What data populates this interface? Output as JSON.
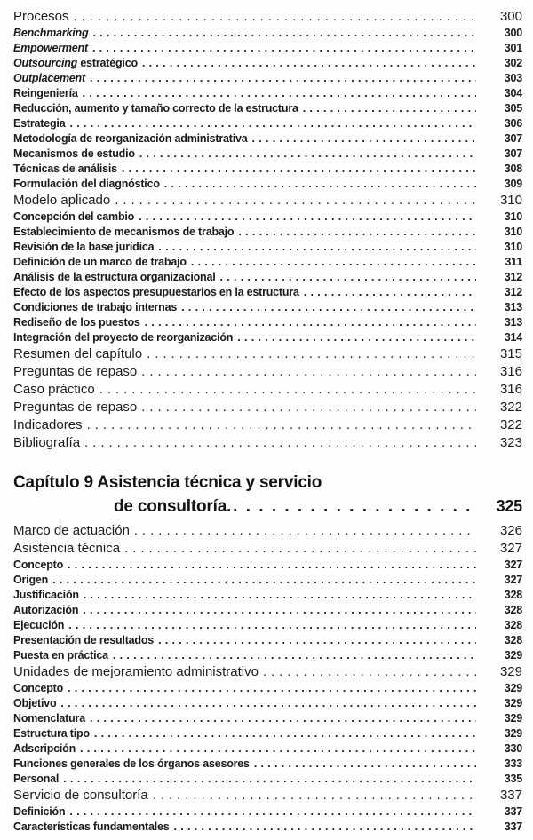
{
  "page": {
    "background": "#fdfdfb",
    "text_color": "#1b1b1b"
  },
  "toc": {
    "blocks": [
      {
        "type": "row",
        "style": "main",
        "segments": [
          {
            "text": "Procesos"
          }
        ],
        "page": "300"
      },
      {
        "type": "row",
        "style": "sub",
        "segments": [
          {
            "text": "Benchmarking",
            "italic": true
          }
        ],
        "page": "300"
      },
      {
        "type": "row",
        "style": "sub",
        "segments": [
          {
            "text": "Empowerment",
            "italic": true
          }
        ],
        "page": "301"
      },
      {
        "type": "row",
        "style": "sub",
        "segments": [
          {
            "text": "Outsourcing",
            "italic": true
          },
          {
            "text": " estratégico"
          }
        ],
        "page": "302"
      },
      {
        "type": "row",
        "style": "sub",
        "segments": [
          {
            "text": "Outplacement",
            "italic": true
          }
        ],
        "page": "303"
      },
      {
        "type": "row",
        "style": "sub",
        "segments": [
          {
            "text": "Reingeniería"
          }
        ],
        "page": "304"
      },
      {
        "type": "row",
        "style": "sub",
        "segments": [
          {
            "text": "Reducción, aumento y tamaño correcto de la estructura"
          }
        ],
        "page": "305"
      },
      {
        "type": "row",
        "style": "sub",
        "segments": [
          {
            "text": "Estrategia"
          }
        ],
        "page": "306"
      },
      {
        "type": "row",
        "style": "sub",
        "segments": [
          {
            "text": "Metodología de reorganización administrativa"
          }
        ],
        "page": "307"
      },
      {
        "type": "row",
        "style": "sub",
        "segments": [
          {
            "text": "Mecanismos de estudio"
          }
        ],
        "page": "307"
      },
      {
        "type": "row",
        "style": "sub",
        "segments": [
          {
            "text": "Técnicas de análisis"
          }
        ],
        "page": "308"
      },
      {
        "type": "row",
        "style": "sub",
        "segments": [
          {
            "text": "Formulación del diagnóstico"
          }
        ],
        "page": "309"
      },
      {
        "type": "row",
        "style": "main",
        "segments": [
          {
            "text": "Modelo aplicado"
          }
        ],
        "page": "310"
      },
      {
        "type": "row",
        "style": "sub",
        "segments": [
          {
            "text": "Concepción del cambio"
          }
        ],
        "page": "310"
      },
      {
        "type": "row",
        "style": "sub",
        "segments": [
          {
            "text": "Establecimiento de mecanismos de trabajo"
          }
        ],
        "page": "310"
      },
      {
        "type": "row",
        "style": "sub",
        "segments": [
          {
            "text": "Revisión de la base jurídica"
          }
        ],
        "page": "310"
      },
      {
        "type": "row",
        "style": "sub",
        "segments": [
          {
            "text": "Definición de un marco de trabajo"
          }
        ],
        "page": "311"
      },
      {
        "type": "row",
        "style": "sub",
        "segments": [
          {
            "text": "Análisis de la estructura organizacional"
          }
        ],
        "page": "312"
      },
      {
        "type": "row",
        "style": "sub",
        "segments": [
          {
            "text": "Efecto de los aspectos presupuestarios en la estructura"
          }
        ],
        "page": "312"
      },
      {
        "type": "row",
        "style": "sub",
        "segments": [
          {
            "text": "Condiciones de trabajo internas"
          }
        ],
        "page": "313"
      },
      {
        "type": "row",
        "style": "sub",
        "segments": [
          {
            "text": "Rediseño de los puestos"
          }
        ],
        "page": "313"
      },
      {
        "type": "row",
        "style": "sub",
        "segments": [
          {
            "text": "Integración del proyecto de reorganización"
          }
        ],
        "page": "314"
      },
      {
        "type": "row",
        "style": "main",
        "segments": [
          {
            "text": "Resumen del capítulo"
          }
        ],
        "page": "315"
      },
      {
        "type": "row",
        "style": "main",
        "segments": [
          {
            "text": "Preguntas de repaso"
          }
        ],
        "page": "316"
      },
      {
        "type": "row",
        "style": "main",
        "segments": [
          {
            "text": "Caso práctico"
          }
        ],
        "page": "316"
      },
      {
        "type": "row",
        "style": "main",
        "segments": [
          {
            "text": "Preguntas de repaso"
          }
        ],
        "page": "322"
      },
      {
        "type": "row",
        "style": "main",
        "segments": [
          {
            "text": "Indicadores"
          }
        ],
        "page": "322"
      },
      {
        "type": "row",
        "style": "main",
        "segments": [
          {
            "text": "Bibliografía"
          }
        ],
        "page": "323"
      },
      {
        "type": "chapter",
        "line1": "Capítulo 9 Asistencia técnica y servicio",
        "line2": "de consultoría.",
        "page": "325"
      },
      {
        "type": "row",
        "style": "main",
        "segments": [
          {
            "text": "Marco de actuación"
          }
        ],
        "page": "326"
      },
      {
        "type": "row",
        "style": "main",
        "segments": [
          {
            "text": "Asistencia técnica"
          }
        ],
        "page": "327"
      },
      {
        "type": "row",
        "style": "sub",
        "segments": [
          {
            "text": "Concepto"
          }
        ],
        "page": "327"
      },
      {
        "type": "row",
        "style": "sub",
        "segments": [
          {
            "text": "Origen"
          }
        ],
        "page": "327"
      },
      {
        "type": "row",
        "style": "sub",
        "segments": [
          {
            "text": "Justificación"
          }
        ],
        "page": "328"
      },
      {
        "type": "row",
        "style": "sub",
        "segments": [
          {
            "text": "Autorización"
          }
        ],
        "page": "328"
      },
      {
        "type": "row",
        "style": "sub",
        "segments": [
          {
            "text": "Ejecución"
          }
        ],
        "page": "328"
      },
      {
        "type": "row",
        "style": "sub",
        "segments": [
          {
            "text": "Presentación de resultados"
          }
        ],
        "page": "328"
      },
      {
        "type": "row",
        "style": "sub",
        "segments": [
          {
            "text": "Puesta en práctica"
          }
        ],
        "page": "329"
      },
      {
        "type": "row",
        "style": "main",
        "segments": [
          {
            "text": "Unidades de mejoramiento administrativo"
          }
        ],
        "page": "329"
      },
      {
        "type": "row",
        "style": "sub",
        "segments": [
          {
            "text": "Concepto"
          }
        ],
        "page": "329"
      },
      {
        "type": "row",
        "style": "sub",
        "segments": [
          {
            "text": "Objetivo"
          }
        ],
        "page": "329"
      },
      {
        "type": "row",
        "style": "sub",
        "segments": [
          {
            "text": "Nomenclatura"
          }
        ],
        "page": "329"
      },
      {
        "type": "row",
        "style": "sub",
        "segments": [
          {
            "text": "Estructura tipo"
          }
        ],
        "page": "329"
      },
      {
        "type": "row",
        "style": "sub",
        "segments": [
          {
            "text": "Adscripción"
          }
        ],
        "page": "330"
      },
      {
        "type": "row",
        "style": "sub",
        "segments": [
          {
            "text": "Funciones generales de los órganos asesores"
          }
        ],
        "page": "333"
      },
      {
        "type": "row",
        "style": "sub",
        "segments": [
          {
            "text": "Personal"
          }
        ],
        "page": "335"
      },
      {
        "type": "row",
        "style": "main",
        "segments": [
          {
            "text": "Servicio de consultoría"
          }
        ],
        "page": "337"
      },
      {
        "type": "row",
        "style": "sub",
        "segments": [
          {
            "text": "Definición"
          }
        ],
        "page": "337"
      },
      {
        "type": "row",
        "style": "sub",
        "segments": [
          {
            "text": "Características fundamentales"
          }
        ],
        "page": "337"
      }
    ]
  }
}
